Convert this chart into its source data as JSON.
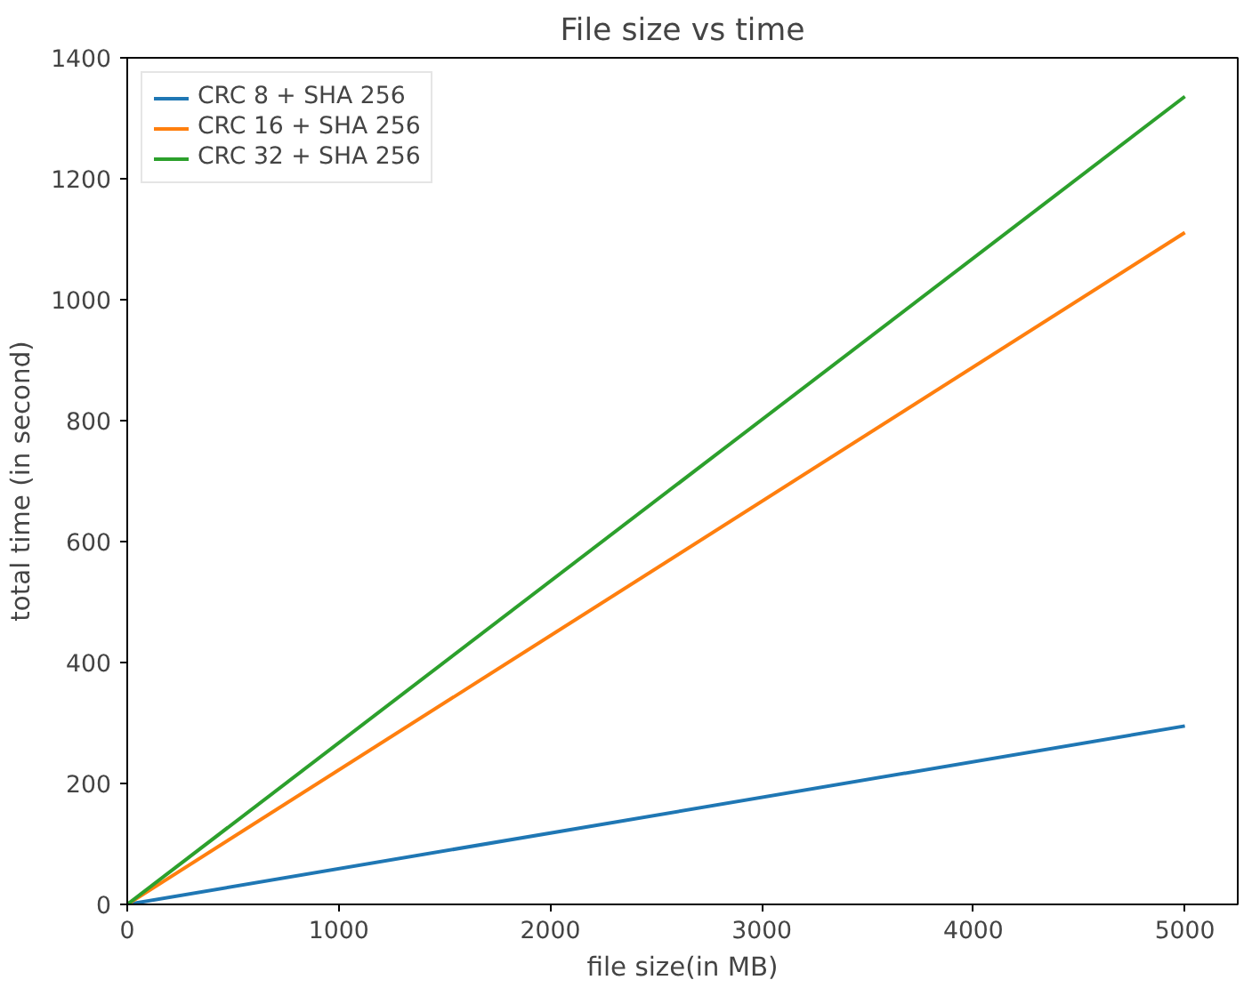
{
  "chart_data": {
    "type": "line",
    "title": "File size vs time",
    "xlabel": "file size(in MB)",
    "ylabel": "total time (in second)",
    "x": [
      0,
      5000
    ],
    "series": [
      {
        "name": "CRC 8 + SHA 256",
        "color": "#1f77b4",
        "values": [
          0,
          295
        ]
      },
      {
        "name": "CRC 16 + SHA 256",
        "color": "#ff7f0e",
        "values": [
          0,
          1111
        ]
      },
      {
        "name": "CRC 32 + SHA 256",
        "color": "#2ca02c",
        "values": [
          0,
          1336
        ]
      }
    ],
    "xlim": [
      0,
      5250
    ],
    "ylim": [
      0,
      1400
    ],
    "xticks": [
      0,
      1000,
      2000,
      3000,
      4000,
      5000
    ],
    "yticks": [
      0,
      200,
      400,
      600,
      800,
      1000,
      1200,
      1400
    ],
    "grid": false,
    "legend": "top left"
  }
}
